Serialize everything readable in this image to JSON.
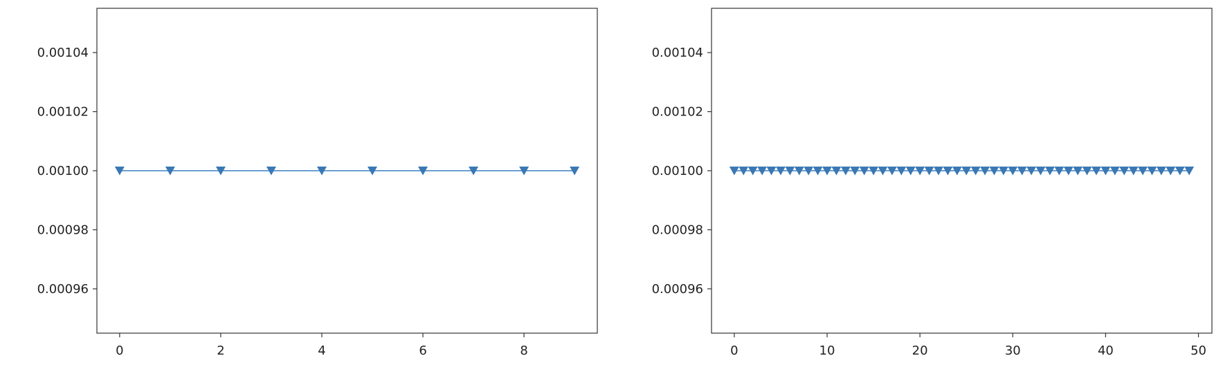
{
  "colors": {
    "series": "#3a78b4",
    "series_line": "#6b9fd0"
  },
  "chart_data": [
    {
      "type": "line",
      "marker": "triangle-down",
      "grid": false,
      "xlim": [
        -0.45,
        9.45
      ],
      "ylim": [
        0.000945,
        0.001055
      ],
      "x_ticks": [
        0,
        2,
        4,
        6,
        8
      ],
      "x_tick_labels": [
        "0",
        "2",
        "4",
        "6",
        "8"
      ],
      "y_ticks": [
        0.00096,
        0.00098,
        0.001,
        0.00102,
        0.00104
      ],
      "y_tick_labels": [
        "0.00096",
        "0.00098",
        "0.00100",
        "0.00102",
        "0.00104"
      ],
      "series": [
        {
          "x": [
            0,
            1,
            2,
            3,
            4,
            5,
            6,
            7,
            8,
            9
          ],
          "y": [
            0.001,
            0.001,
            0.001,
            0.001,
            0.001,
            0.001,
            0.001,
            0.001,
            0.001,
            0.001
          ]
        }
      ]
    },
    {
      "type": "line",
      "marker": "triangle-down",
      "grid": false,
      "xlim": [
        -2.45,
        51.45
      ],
      "ylim": [
        0.000945,
        0.001055
      ],
      "x_ticks": [
        0,
        10,
        20,
        30,
        40,
        50
      ],
      "x_tick_labels": [
        "0",
        "10",
        "20",
        "30",
        "40",
        "50"
      ],
      "y_ticks": [
        0.00096,
        0.00098,
        0.001,
        0.00102,
        0.00104
      ],
      "y_tick_labels": [
        "0.00096",
        "0.00098",
        "0.00100",
        "0.00102",
        "0.00104"
      ],
      "series": [
        {
          "x": [
            0,
            1,
            2,
            3,
            4,
            5,
            6,
            7,
            8,
            9,
            10,
            11,
            12,
            13,
            14,
            15,
            16,
            17,
            18,
            19,
            20,
            21,
            22,
            23,
            24,
            25,
            26,
            27,
            28,
            29,
            30,
            31,
            32,
            33,
            34,
            35,
            36,
            37,
            38,
            39,
            40,
            41,
            42,
            43,
            44,
            45,
            46,
            47,
            48,
            49
          ],
          "y": [
            0.001,
            0.001,
            0.001,
            0.001,
            0.001,
            0.001,
            0.001,
            0.001,
            0.001,
            0.001,
            0.001,
            0.001,
            0.001,
            0.001,
            0.001,
            0.001,
            0.001,
            0.001,
            0.001,
            0.001,
            0.001,
            0.001,
            0.001,
            0.001,
            0.001,
            0.001,
            0.001,
            0.001,
            0.001,
            0.001,
            0.001,
            0.001,
            0.001,
            0.001,
            0.001,
            0.001,
            0.001,
            0.001,
            0.001,
            0.001,
            0.001,
            0.001,
            0.001,
            0.001,
            0.001,
            0.001,
            0.001,
            0.001,
            0.001,
            0.001
          ]
        }
      ]
    }
  ]
}
